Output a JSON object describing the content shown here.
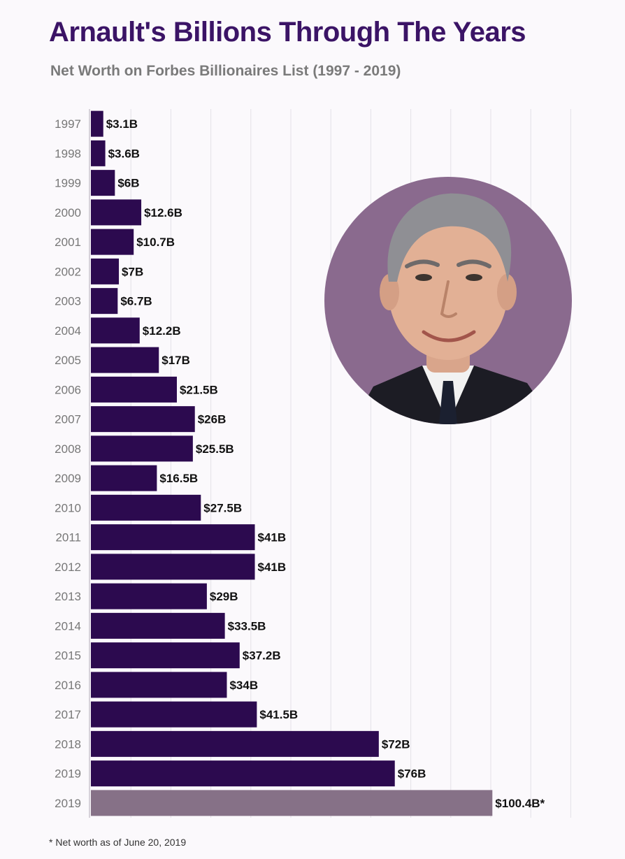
{
  "header": {
    "title": "Arnault's Billions Through The Years",
    "subtitle": "Net Worth on Forbes Billionaires List (1997 - 2019)"
  },
  "footnote": "* Net worth as of June 20, 2019",
  "colors": {
    "bar": "#2c0a4f",
    "highlight_bar": "#867187",
    "title": "#3b1466",
    "axis_labels": "#777777",
    "grid": "#e4e1e7"
  },
  "portrait_icon": "person-portrait-icon",
  "chart_data": {
    "type": "bar",
    "orientation": "horizontal",
    "title": "Arnault's Billions Through The Years",
    "subtitle": "Net Worth on Forbes Billionaires List (1997 - 2019)",
    "categories": [
      "1997",
      "1998",
      "1999",
      "2000",
      "2001",
      "2002",
      "2003",
      "2004",
      "2005",
      "2006",
      "2007",
      "2008",
      "2009",
      "2010",
      "2011",
      "2012",
      "2013",
      "2014",
      "2015",
      "2016",
      "2017",
      "2018",
      "2019",
      "2019"
    ],
    "values": [
      3.1,
      3.6,
      6,
      12.6,
      10.7,
      7,
      6.7,
      12.2,
      17,
      21.5,
      26,
      25.5,
      16.5,
      27.5,
      41,
      41,
      29,
      33.5,
      37.2,
      34,
      41.5,
      72,
      76,
      100.4
    ],
    "value_labels": [
      "$3.1B",
      "$3.6B",
      "$6B",
      "$12.6B",
      "$10.7B",
      "$7B",
      "$6.7B",
      "$12.2B",
      "$17B",
      "$21.5B",
      "$26B",
      "$25.5B",
      "$16.5B",
      "$27.5B",
      "$41B",
      "$41B",
      "$29B",
      "$33.5B",
      "$37.2B",
      "$34B",
      "$41.5B",
      "$72B",
      "$76B",
      "$100.4B*"
    ],
    "highlight_index": 23,
    "unit": "billion USD",
    "xlim": [
      0,
      120
    ],
    "grid": true,
    "legend": "none"
  }
}
